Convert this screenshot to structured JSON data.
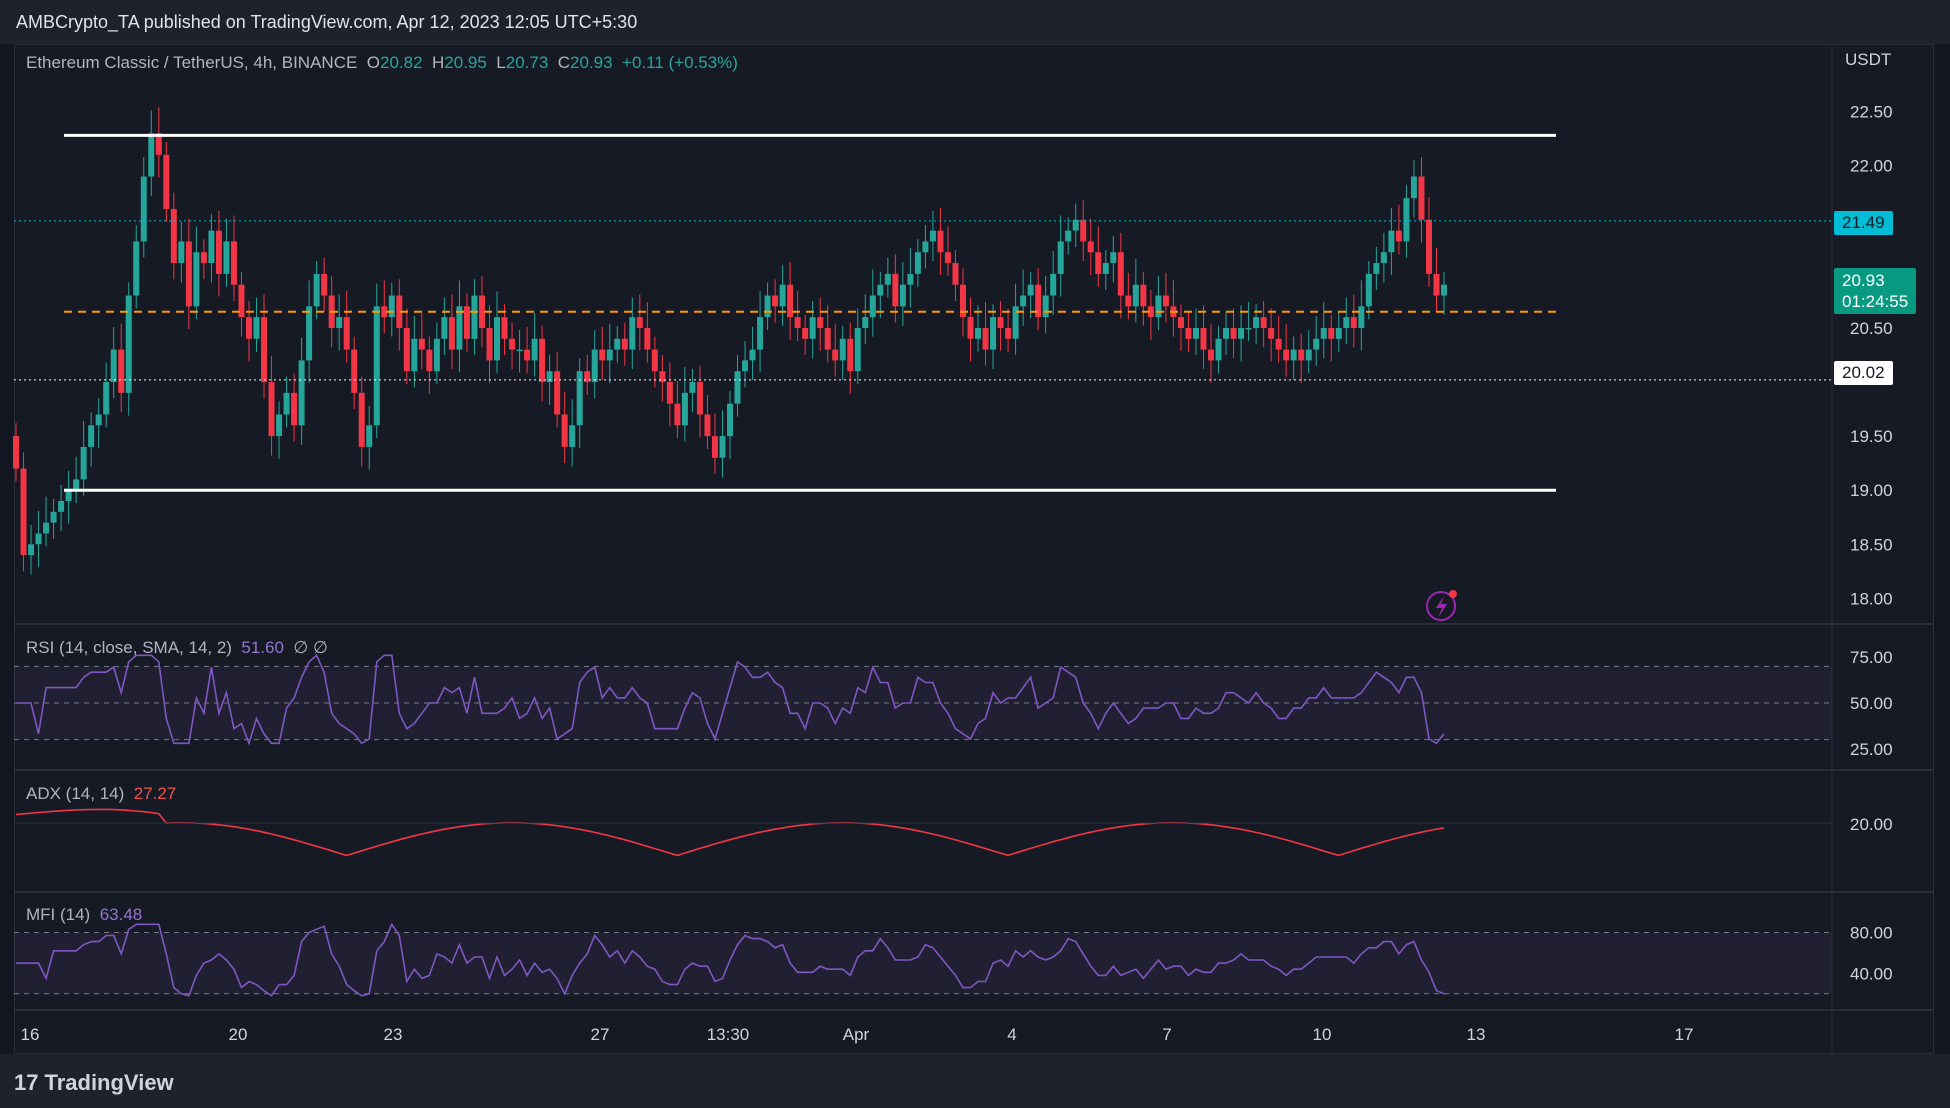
{
  "header": {
    "publisher": "AMBCrypto_TA published on TradingView.com, Apr 12, 2023 12:05 UTC+5:30"
  },
  "main_chart": {
    "symbol": "Ethereum Classic / TetherUS, 4h, BINANCE",
    "o_label": "O",
    "o_value": "20.82",
    "h_label": "H",
    "h_value": "20.95",
    "l_label": "L",
    "l_value": "20.73",
    "c_label": "C",
    "c_value": "20.93",
    "change": "+0.11 (+0.53%)",
    "currency": "USDT",
    "price_axis": [
      "22.50",
      "22.00",
      "21.49",
      "20.50",
      "20.02",
      "19.50",
      "19.00",
      "18.50",
      "18.00"
    ],
    "last_price_tag": "21.49",
    "current_price_tag": "20.93",
    "countdown": "01:24:55",
    "low_tag": "20.02",
    "colors": {
      "up": "#26a69a",
      "down": "#f23645",
      "level": "#ffffff",
      "mid": "#ff9800",
      "bg": "#161a25"
    }
  },
  "rsi": {
    "label": "RSI (14, close, SMA, 14, 2)",
    "value": "51.60",
    "extra": "∅  ∅",
    "axis": [
      "75.00",
      "50.00",
      "25.00"
    ]
  },
  "adx": {
    "label": "ADX (14, 14)",
    "value": "27.27",
    "axis": [
      "20.00"
    ]
  },
  "mfi": {
    "label": "MFI (14)",
    "value": "63.48",
    "axis": [
      "80.00",
      "40.00"
    ]
  },
  "time_axis": [
    "16",
    "20",
    "23",
    "27",
    "13:30",
    "Apr",
    "4",
    "7",
    "10",
    "13",
    "17"
  ],
  "footer": {
    "brand": "TradingView"
  },
  "chart_data": {
    "type": "candlestick",
    "timeframe": "4h",
    "symbol": "ETC/USDT",
    "x_range": [
      "Mar 16 2023",
      "Apr 17 2023"
    ],
    "ylim": [
      17.8,
      22.7
    ],
    "close": [
      19.2,
      18.4,
      18.5,
      18.6,
      18.7,
      18.8,
      18.9,
      19.0,
      19.1,
      19.4,
      19.6,
      19.7,
      20.0,
      20.3,
      19.9,
      20.8,
      21.3,
      21.9,
      22.3,
      22.1,
      21.6,
      21.1,
      21.3,
      20.7,
      21.2,
      21.1,
      21.4,
      21.0,
      21.3,
      20.9,
      20.6,
      20.4,
      20.6,
      20.0,
      19.5,
      19.7,
      19.9,
      19.6,
      20.2,
      20.7,
      21.0,
      20.8,
      20.5,
      20.6,
      20.3,
      19.9,
      19.4,
      19.6,
      20.7,
      20.6,
      20.8,
      20.5,
      20.1,
      20.4,
      20.3,
      20.1,
      20.4,
      20.6,
      20.3,
      20.7,
      20.4,
      20.8,
      20.5,
      20.2,
      20.6,
      20.4,
      20.3,
      20.3,
      20.2,
      20.4,
      20.0,
      20.1,
      19.7,
      19.4,
      19.6,
      20.1,
      20.0,
      20.3,
      20.2,
      20.3,
      20.4,
      20.3,
      20.6,
      20.5,
      20.3,
      20.1,
      20.0,
      19.8,
      19.6,
      19.9,
      20.0,
      19.7,
      19.5,
      19.3,
      19.5,
      19.8,
      20.1,
      20.2,
      20.3,
      20.6,
      20.8,
      20.7,
      20.9,
      20.6,
      20.5,
      20.4,
      20.6,
      20.5,
      20.3,
      20.2,
      20.4,
      20.1,
      20.5,
      20.6,
      20.8,
      20.9,
      21.0,
      20.7,
      20.9,
      21.0,
      21.2,
      21.3,
      21.4,
      21.2,
      21.1,
      20.9,
      20.6,
      20.4,
      20.5,
      20.3,
      20.6,
      20.5,
      20.4,
      20.7,
      20.8,
      20.9,
      20.6,
      20.8,
      21.0,
      21.3,
      21.4,
      21.5,
      21.3,
      21.2,
      21.0,
      21.1,
      21.2,
      20.8,
      20.7,
      20.9,
      20.7,
      20.6,
      20.8,
      20.7,
      20.6,
      20.5,
      20.4,
      20.5,
      20.3,
      20.2,
      20.4,
      20.5,
      20.4,
      20.5,
      20.5,
      20.6,
      20.5,
      20.4,
      20.3,
      20.2,
      20.3,
      20.2,
      20.3,
      20.4,
      20.5,
      20.4,
      20.5,
      20.6,
      20.5,
      20.7,
      21.0,
      21.1,
      21.2,
      21.4,
      21.3,
      21.7,
      21.9,
      21.5,
      21.0,
      20.8,
      20.9
    ],
    "levels": [
      {
        "name": "range-top",
        "value": 22.28
      },
      {
        "name": "range-mid",
        "value": 20.65
      },
      {
        "name": "range-bottom",
        "value": 19.0
      }
    ],
    "rsi_levels": [
      70,
      50,
      30
    ],
    "mfi_levels": [
      80,
      20
    ]
  }
}
